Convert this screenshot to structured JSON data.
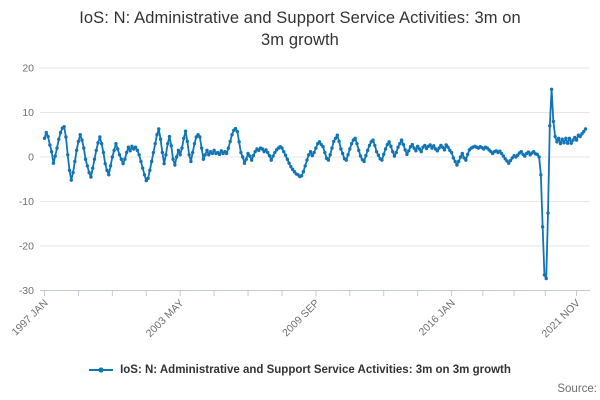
{
  "title": {
    "lines": [
      "IoS: N: Administrative and Support Service Activities: 3m on",
      "3m growth"
    ]
  },
  "legend": {
    "label": "IoS: N: Administrative and Support Service Activities: 3m on 3m growth"
  },
  "source": {
    "label": "Source:"
  },
  "colors": {
    "series": "#1174b5",
    "grid": "#e6e6e6",
    "axis": "#c2cbdc",
    "tick_label": "#6f6f6f",
    "title_text": "#333333"
  },
  "chart_data": {
    "type": "line",
    "title": "IoS: N: Administrative and Support Service Activities: 3m on 3m growth",
    "xlabel": "",
    "ylabel": "",
    "x_start": "1997-01",
    "x_end": "2022-04",
    "x_frequency": "monthly",
    "ylim": [
      -30,
      20
    ],
    "y_ticks": [
      20,
      10,
      0,
      -10,
      -20,
      -30
    ],
    "grid": "horizontal",
    "legend_position": "bottom",
    "marker": "circle",
    "x_tick_labels": [
      {
        "label": "1997 JAN",
        "month_index": 0
      },
      {
        "label": "2003 MAY",
        "month_index": 76
      },
      {
        "label": "2009 SEP",
        "month_index": 152
      },
      {
        "label": "2016 JAN",
        "month_index": 228
      },
      {
        "label": "2021 NOV",
        "month_index": 298
      }
    ],
    "minor_ticks_between_labels": 3,
    "values": [
      4.2,
      5.5,
      4.6,
      2.7,
      1.2,
      -1.4,
      0.2,
      2.0,
      4.0,
      5.5,
      6.5,
      6.8,
      4.5,
      0.5,
      -3.0,
      -5.2,
      -3.5,
      -1.0,
      1.5,
      3.5,
      5.0,
      3.8,
      2.0,
      -0.5,
      -2.0,
      -3.5,
      -4.5,
      -2.5,
      -0.5,
      1.5,
      3.2,
      4.5,
      3.0,
      1.0,
      -1.5,
      -3.0,
      -4.0,
      -2.0,
      0.0,
      1.5,
      3.0,
      1.8,
      0.5,
      -0.5,
      -1.5,
      -0.5,
      1.0,
      2.2,
      1.4,
      2.4,
      1.8,
      2.2,
      1.5,
      0.5,
      -1.0,
      -2.5,
      -4.0,
      -5.3,
      -4.8,
      -3.0,
      -1.0,
      1.0,
      3.0,
      5.0,
      6.3,
      4.0,
      1.0,
      -1.5,
      0.5,
      3.0,
      4.6,
      2.5,
      -0.5,
      -1.8,
      0.0,
      1.5,
      0.5,
      2.0,
      4.2,
      5.8,
      3.5,
      0.5,
      -1.0,
      1.0,
      3.0,
      4.5,
      5.0,
      4.5,
      2.0,
      -0.5,
      0.5,
      1.5,
      0.5,
      1.2,
      0.8,
      1.5,
      0.8,
      1.0,
      0.6,
      1.4,
      0.8,
      1.2,
      0.8,
      2.0,
      3.5,
      5.0,
      6.0,
      6.4,
      5.7,
      3.4,
      1.0,
      0.0,
      -1.4,
      -0.5,
      0.8,
      0.2,
      -0.7,
      0.3,
      1.2,
      1.8,
      1.5,
      2.0,
      1.8,
      1.2,
      1.6,
      1.0,
      0.3,
      -0.7,
      0.2,
      1.0,
      1.6,
      2.0,
      2.3,
      2.0,
      1.2,
      0.4,
      -0.5,
      -1.4,
      -2.2,
      -2.8,
      -3.3,
      -3.8,
      -4.0,
      -4.4,
      -4.2,
      -3.3,
      -2.0,
      -0.7,
      0.5,
      1.2,
      0.3,
      1.0,
      2.0,
      3.0,
      3.4,
      2.8,
      2.3,
      1.0,
      -0.3,
      -0.7,
      0.5,
      2.0,
      3.5,
      4.2,
      4.9,
      3.5,
      1.8,
      0.8,
      -0.4,
      -0.7,
      0.5,
      1.8,
      3.0,
      3.8,
      4.2,
      3.0,
      1.5,
      0.2,
      -0.6,
      -1.0,
      0.3,
      1.5,
      2.6,
      3.4,
      3.8,
      2.6,
      1.2,
      0.4,
      -0.4,
      -0.7,
      0.6,
      1.8,
      2.8,
      3.4,
      2.4,
      1.2,
      0.2,
      1.0,
      2.2,
      3.0,
      3.8,
      2.8,
      1.6,
      0.6,
      1.4,
      2.3,
      2.8,
      2.0,
      1.4,
      2.4,
      1.8,
      1.2,
      2.2,
      2.6,
      1.9,
      2.4,
      2.7,
      2.0,
      2.5,
      1.8,
      1.4,
      2.0,
      2.6,
      2.2,
      1.6,
      2.7,
      2.2,
      1.5,
      1.0,
      -0.2,
      -1.0,
      -1.8,
      -1.0,
      0.0,
      0.8,
      -0.2,
      -0.7,
      0.6,
      1.6,
      2.0,
      2.2,
      2.4,
      2.2,
      2.0,
      2.3,
      2.1,
      1.8,
      2.2,
      2.0,
      1.6,
      1.2,
      0.8,
      1.2,
      1.4,
      1.0,
      1.3,
      0.8,
      0.2,
      -0.4,
      -0.9,
      -1.4,
      -0.8,
      -0.2,
      0.3,
      0.0,
      0.4,
      0.9,
      1.2,
      0.6,
      0.2,
      0.8,
      1.1,
      0.5,
      0.9,
      1.2,
      0.7,
      0.6,
      0.0,
      -4.0,
      -15.7,
      -26.5,
      -27.3,
      -12.6,
      7.0,
      15.2,
      8.0,
      4.6,
      3.4,
      4.2,
      3.0,
      4.0,
      3.2,
      4.2,
      3.1,
      4.2,
      3.1,
      3.8,
      4.4,
      3.8,
      4.9,
      4.6,
      5.2,
      5.7,
      6.3
    ]
  }
}
